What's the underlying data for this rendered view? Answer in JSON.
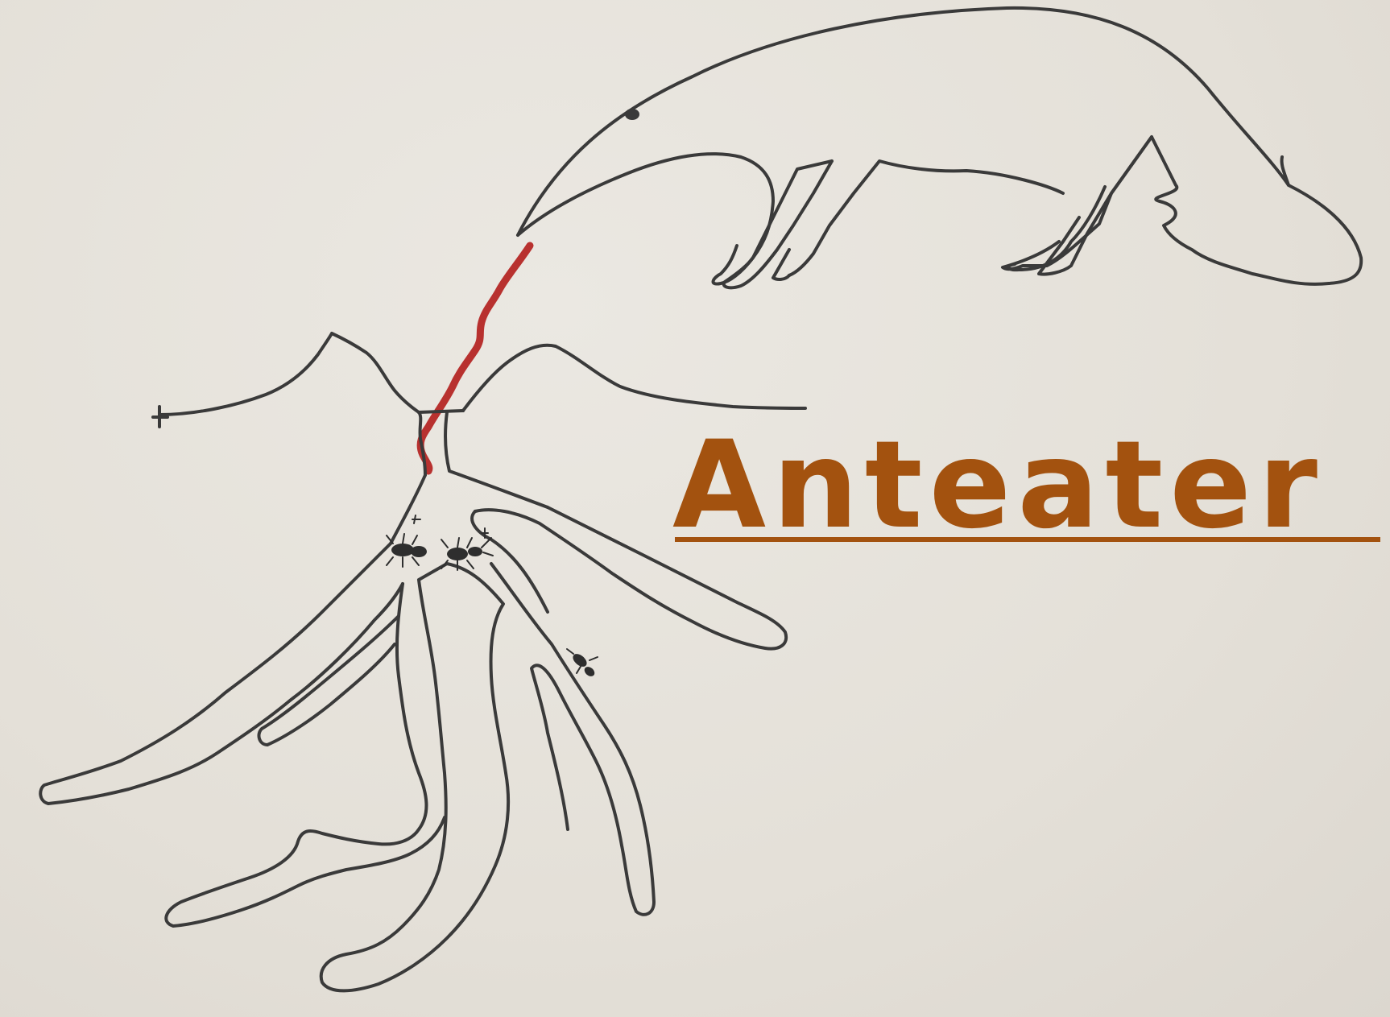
{
  "label": {
    "text": "Anteater",
    "color": "#a3520f"
  },
  "colors": {
    "ink": "#3a3a3a",
    "tongue": "#b3221f",
    "paper": "#e7e3dc"
  },
  "icons": {
    "animal": "anteater-icon",
    "nest": "ant-nest-icon",
    "ants": "ant-icon"
  }
}
